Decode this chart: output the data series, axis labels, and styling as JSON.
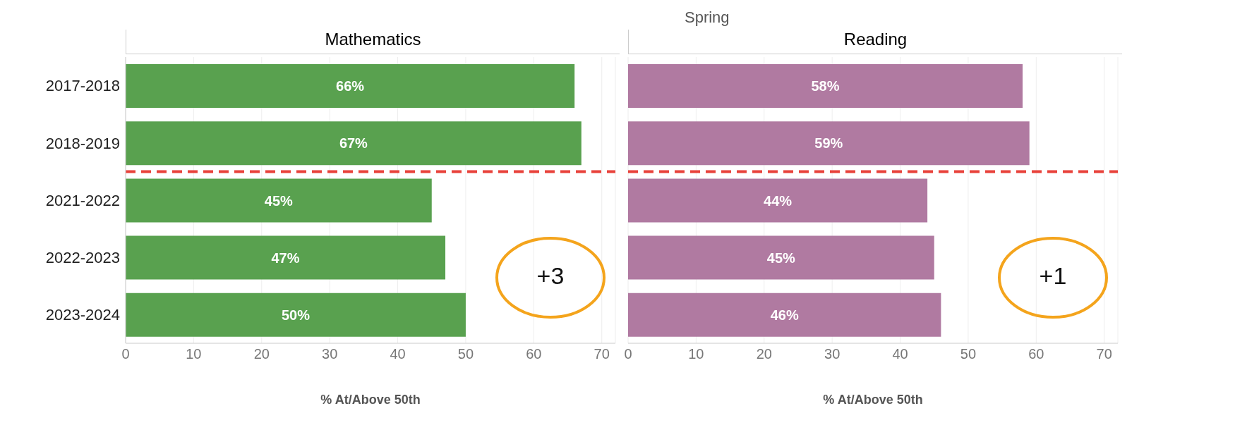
{
  "chart_data": [
    {
      "type": "bar",
      "orientation": "horizontal",
      "subtitle": "Mathematics",
      "xlabel": "% At/Above 50th",
      "categories": [
        "2017-2018",
        "2018-2019",
        "2021-2022",
        "2022-2023",
        "2023-2024"
      ],
      "values": [
        66,
        67,
        45,
        47,
        50
      ],
      "value_labels": [
        "66%",
        "67%",
        "45%",
        "47%",
        "50%"
      ],
      "color": "#59a14f",
      "xlim": [
        0,
        72
      ],
      "xticks": [
        0,
        10,
        20,
        30,
        40,
        50,
        60,
        70
      ],
      "grid": "x",
      "legend": false,
      "ref_lines": [
        {
          "axis": "y",
          "value": "2021-2022",
          "color": "#e8413a",
          "line_style": "dashed"
        }
      ],
      "annotations": [
        "+3"
      ]
    },
    {
      "type": "bar",
      "orientation": "horizontal",
      "title": "Spring",
      "subtitle": "Reading",
      "xlabel": "% At/Above 50th",
      "categories": [
        "2017-2018",
        "2018-2019",
        "2021-2022",
        "2022-2023",
        "2023-2024"
      ],
      "values": [
        58,
        59,
        44,
        45,
        46
      ],
      "value_labels": [
        "58%",
        "59%",
        "44%",
        "45%",
        "46%"
      ],
      "color": "#b07aa1",
      "xlim": [
        0,
        72
      ],
      "xticks": [
        0,
        10,
        20,
        30,
        40,
        50,
        60,
        70
      ],
      "grid": "x",
      "legend": false,
      "tick_labels": "x",
      "ref_lines": [
        {
          "axis": "y",
          "value": "2021-2022",
          "color": "#e8413a",
          "line_style": "dashed"
        }
      ],
      "annotations": [
        "+1"
      ]
    }
  ]
}
